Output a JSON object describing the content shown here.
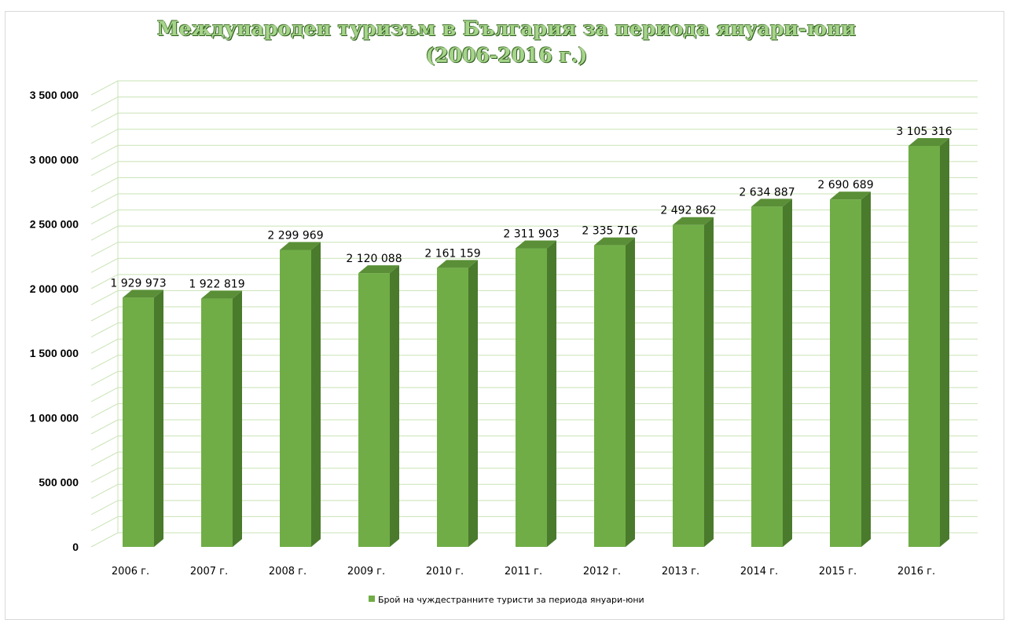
{
  "chart_data": {
    "type": "bar",
    "title_line1": "Международен туризъм в България за периода януари-юни",
    "title_line2": "(2006-2016 г.)",
    "categories": [
      "2006 г.",
      "2007 г.",
      "2008 г.",
      "2009 г.",
      "2010 г.",
      "2011 г.",
      "2012 г.",
      "2013 г.",
      "2014 г.",
      "2015 г.",
      "2016 г."
    ],
    "series": [
      {
        "name": "Брой на чуждестранните туристи за периода януари-юни",
        "values": [
          1929973,
          1922819,
          2299969,
          2120088,
          2161159,
          2311903,
          2335716,
          2492862,
          2634887,
          2690689,
          3105316
        ],
        "labels": [
          "1 929 973",
          "1 922 819",
          "2 299 969",
          "2 120 088",
          "2 161 159",
          "2 311 903",
          "2 335 716",
          "2 492 862",
          "2 634 887",
          "2 690 689",
          "3 105 316"
        ]
      }
    ],
    "y_ticks": [
      {
        "value": 0,
        "label": "0"
      },
      {
        "value": 500000,
        "label": "500 000"
      },
      {
        "value": 1000000,
        "label": "1 000 000"
      },
      {
        "value": 1500000,
        "label": "1 500 000"
      },
      {
        "value": 2000000,
        "label": "2 000 000"
      },
      {
        "value": 2500000,
        "label": "2 500 000"
      },
      {
        "value": 3000000,
        "label": "3 000 000"
      },
      {
        "value": 3500000,
        "label": "3 500 000"
      }
    ],
    "ylim": [
      0,
      3500000
    ],
    "minor_gridline_step": 125000,
    "grid": true,
    "legend_position": "bottom",
    "colors": {
      "bar_front": "#70ad47",
      "bar_side": "#4a7a2c",
      "bar_top": "#5a8f37",
      "gridline": "#c9e3b5",
      "axis_text": "#000000"
    }
  }
}
